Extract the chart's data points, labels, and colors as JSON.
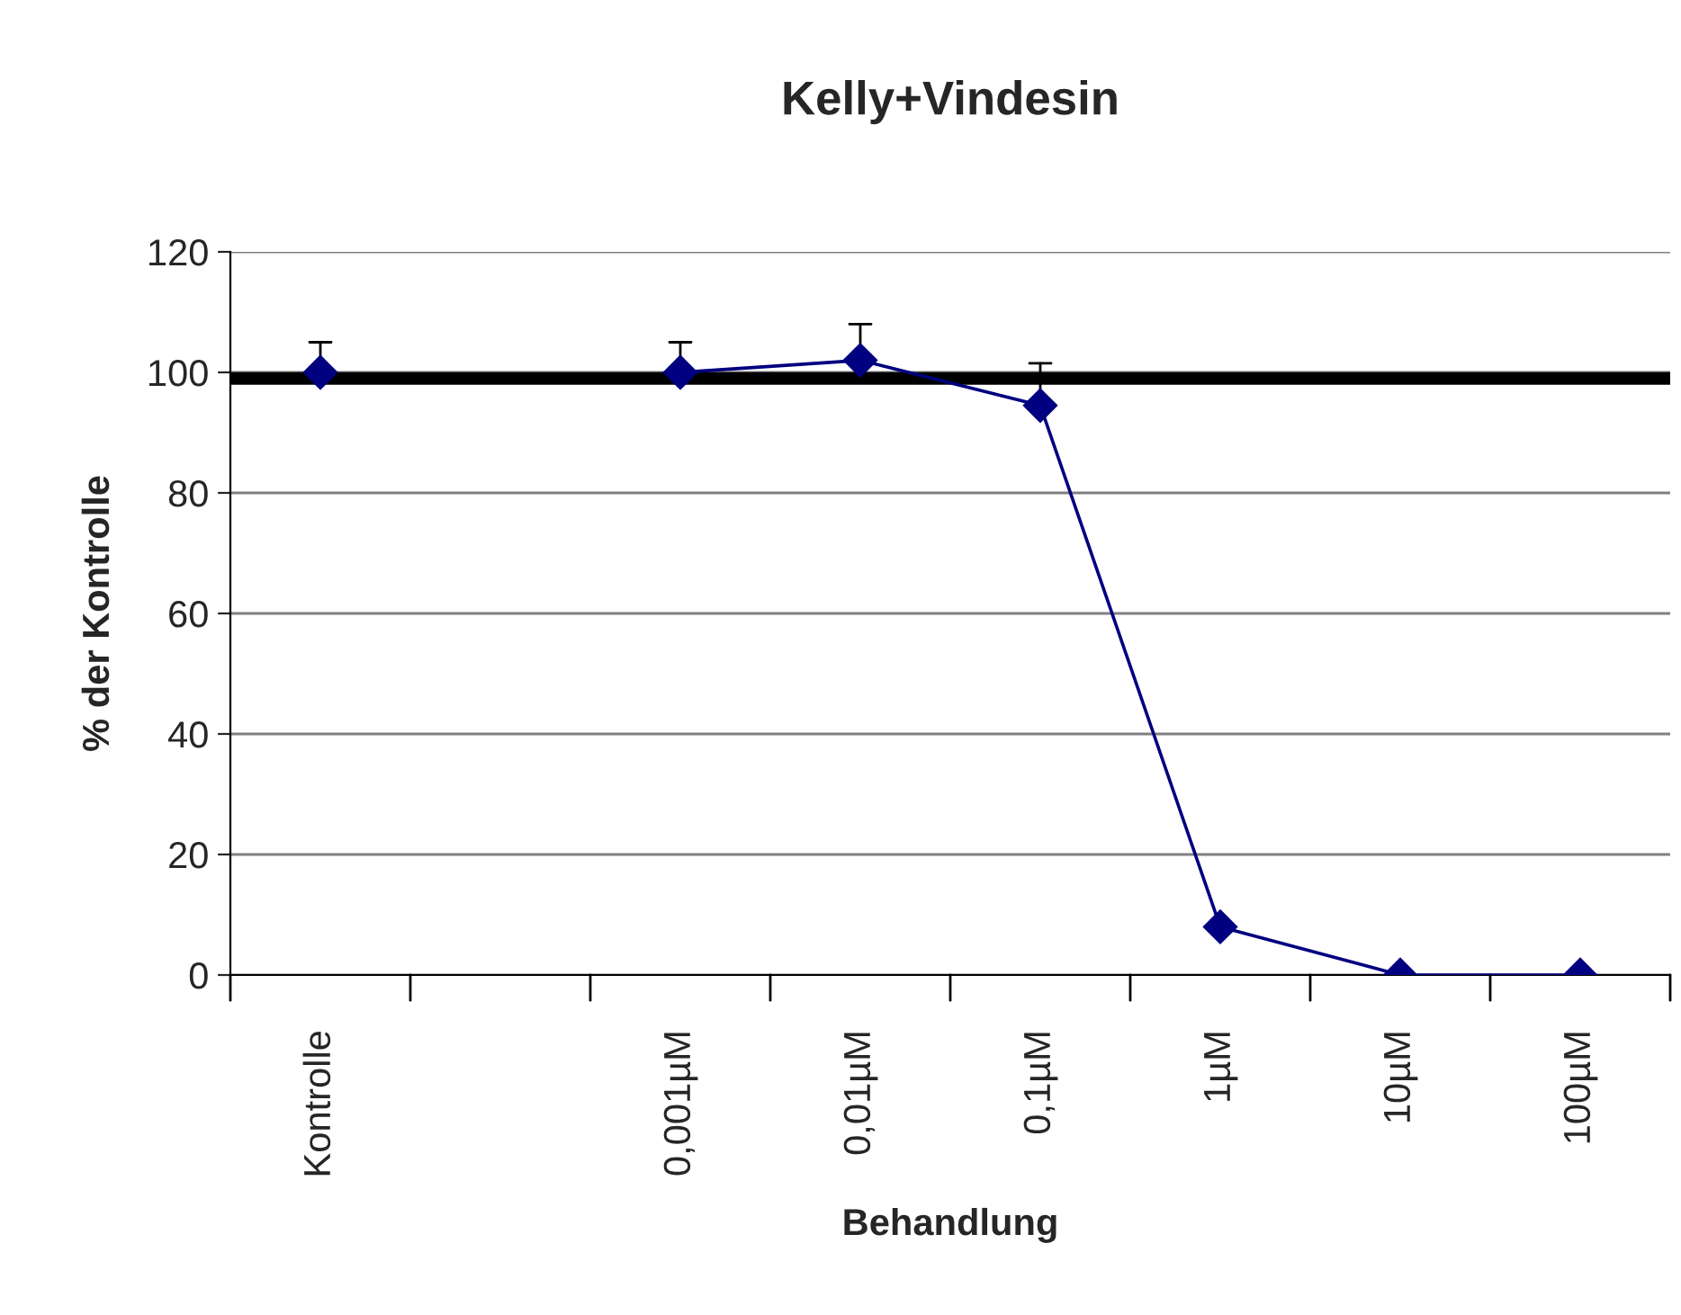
{
  "chart_data": {
    "type": "line",
    "title": "Kelly+Vindesin",
    "xlabel": "Behandlung",
    "ylabel": "% der Kontrolle",
    "categories": [
      "Kontrolle",
      null,
      "0,001µM",
      "0,01µM",
      "0,1µM",
      "1µM",
      "10µM",
      "100µM"
    ],
    "series": [
      {
        "color": "#000080",
        "values": [
          100,
          null,
          100,
          102,
          94.5,
          8,
          0,
          0
        ],
        "errors": [
          [
            100,
            105
          ],
          null,
          [
            100,
            105
          ],
          [
            102,
            108
          ],
          [
            94.5,
            101.5
          ],
          null,
          null,
          null
        ]
      }
    ],
    "ylim": [
      0,
      120
    ],
    "yticks": [
      0,
      20,
      40,
      60,
      80,
      100,
      120
    ],
    "grid": "y",
    "marker": "diamond",
    "line_style": "solid",
    "legend": false,
    "ref_lines": [
      {
        "axis": "y",
        "value": 99,
        "color": "#000000",
        "line_style": "solid"
      }
    ]
  }
}
